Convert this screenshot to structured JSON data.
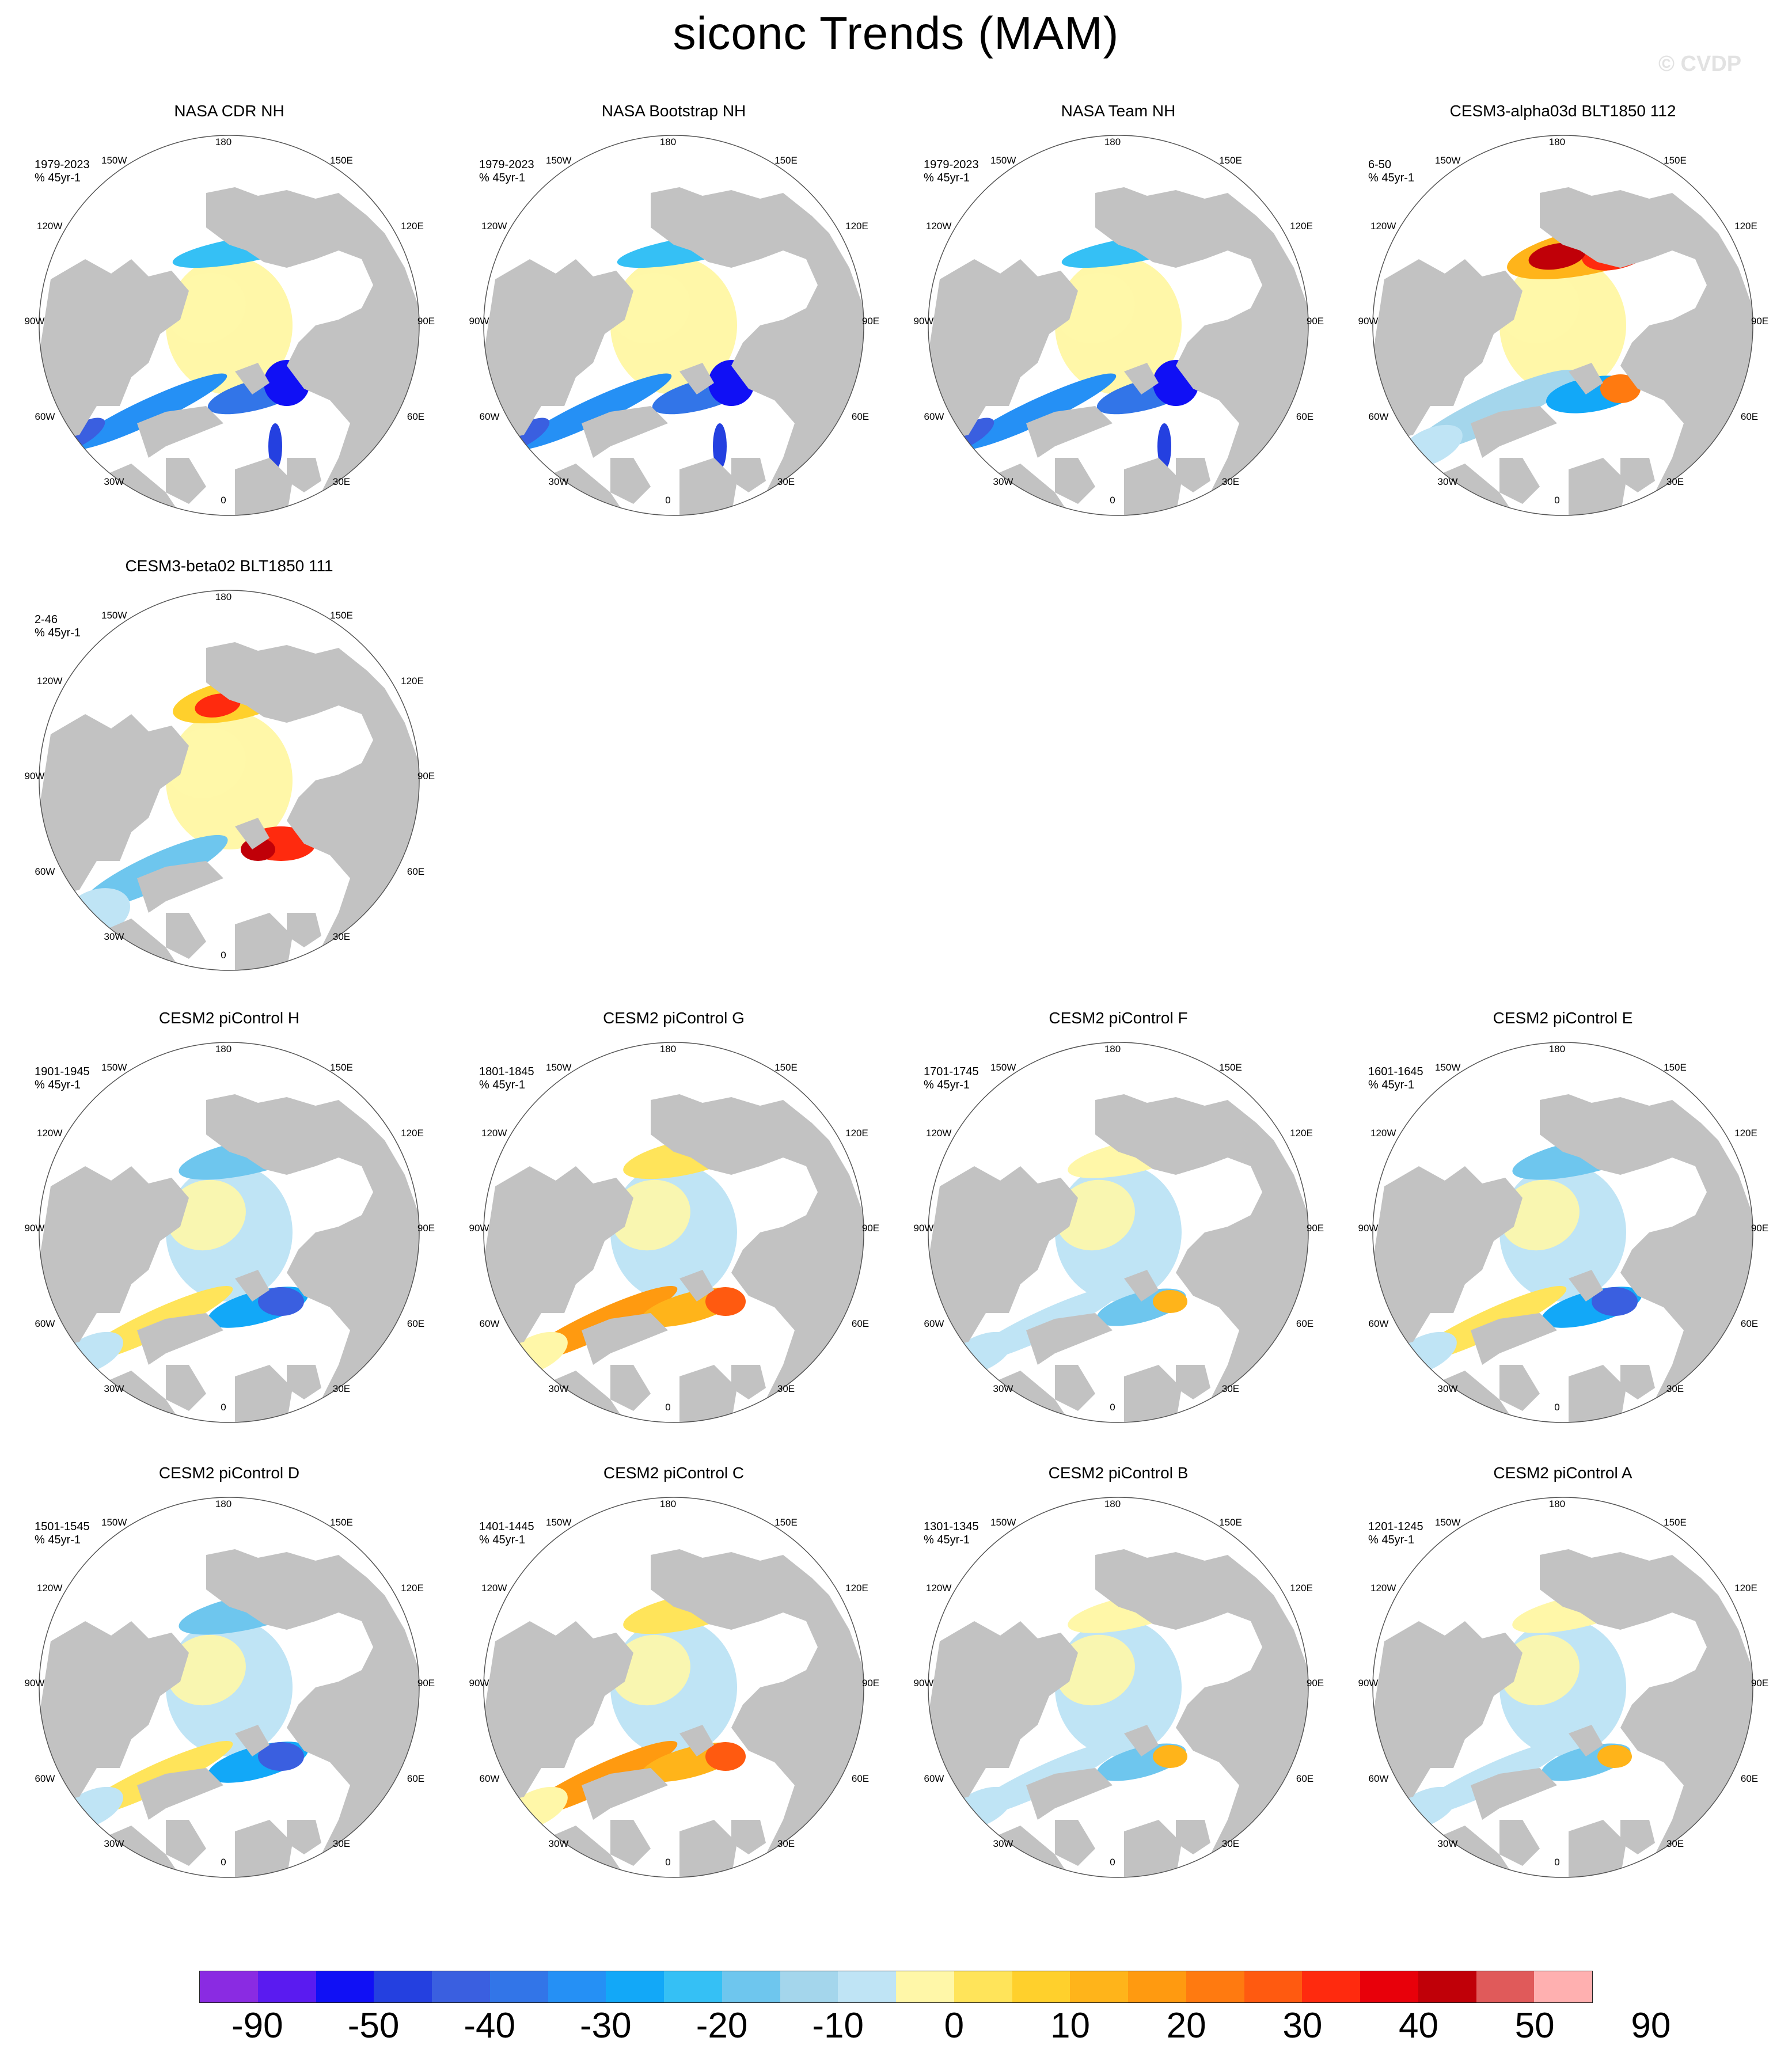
{
  "title": "siconc Trends (MAM)",
  "watermark": "© CVDP",
  "units": "% 45yr-1",
  "longitudes": [
    "180",
    "150W",
    "150E",
    "120W",
    "120E",
    "90W",
    "90E",
    "60W",
    "60E",
    "30W",
    "30E",
    "0"
  ],
  "panels": [
    {
      "title": "NASA CDR NH",
      "period": "1979-2023",
      "pattern": "decline"
    },
    {
      "title": "NASA Bootstrap NH",
      "period": "1979-2023",
      "pattern": "decline"
    },
    {
      "title": "NASA Team NH",
      "period": "1979-2023",
      "pattern": "decline"
    },
    {
      "title": "CESM3-alpha03d BLT1850 112",
      "period": "6-50",
      "pattern": "gain-pacific"
    },
    {
      "title": "CESM3-beta02 BLT1850 111",
      "period": "2-46",
      "pattern": "gain-mixed"
    },
    {
      "title": "CESM2 piControl H",
      "period": "1901-1945",
      "pattern": "mixed-neg"
    },
    {
      "title": "CESM2 piControl G",
      "period": "1801-1845",
      "pattern": "mixed-pos"
    },
    {
      "title": "CESM2 piControl F",
      "period": "1701-1745",
      "pattern": "mixed-weak"
    },
    {
      "title": "CESM2 piControl E",
      "period": "1601-1645",
      "pattern": "mixed-neg"
    },
    {
      "title": "CESM2 piControl D",
      "period": "1501-1545",
      "pattern": "mixed-neg"
    },
    {
      "title": "CESM2 piControl C",
      "period": "1401-1445",
      "pattern": "mixed-pos"
    },
    {
      "title": "CESM2 piControl B",
      "period": "1301-1345",
      "pattern": "mixed-weak"
    },
    {
      "title": "CESM2 piControl A",
      "period": "1201-1245",
      "pattern": "mixed-weak"
    }
  ],
  "colorbar": {
    "colors": [
      "#8a2be2",
      "#5a1bf0",
      "#1010f5",
      "#2440e0",
      "#3a5fe0",
      "#3275e8",
      "#2590f5",
      "#12a8f8",
      "#35c0f5",
      "#6ec6ee",
      "#a4d6ec",
      "#bfe4f5",
      "#fff7a8",
      "#ffe45a",
      "#ffd02c",
      "#ffb41a",
      "#ff9a10",
      "#ff7a10",
      "#ff5a10",
      "#ff2a0e",
      "#e8000a",
      "#c00008",
      "#e05a5a",
      "#ffb0b0"
    ],
    "labels": [
      "-90",
      "-50",
      "-40",
      "-30",
      "-20",
      "-10",
      "0",
      "10",
      "20",
      "30",
      "40",
      "50",
      "90"
    ]
  },
  "colors": {
    "land": "#c2c2c2",
    "no_trend": "#ffffff"
  }
}
